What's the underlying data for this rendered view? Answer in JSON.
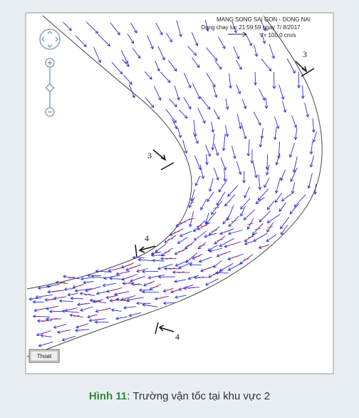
{
  "figure": {
    "header_lines": [
      "MANG SONG SAI GON - DONG NAI",
      "Dong chay luc 21:59:59 ngay  7/ 8/2017"
    ],
    "scale_label": "V= 100.0 cm/s",
    "section_labels": [
      "3",
      "3",
      "4",
      "4"
    ],
    "button": "Thoat",
    "caption": {
      "label": "Hình 11",
      "text": ": Trường vận tốc tại khu vực 2"
    }
  }
}
